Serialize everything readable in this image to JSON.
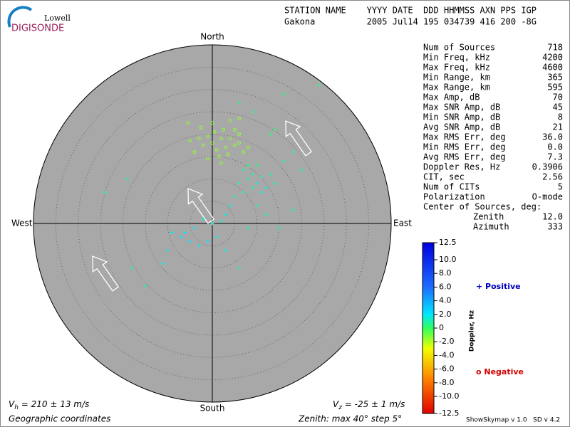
{
  "header": {
    "logo_top": "Lowell",
    "logo_bottom": "DIGISONDE",
    "line1": "STATION NAME    YYYY DATE  DDD HHMMSS AXN PPS IGP",
    "line2": "Gakona          2005 Jul14 195 034739 416 200 -8G"
  },
  "directions": {
    "north": "North",
    "south": "South",
    "west": "West",
    "east": "East"
  },
  "stats": [
    [
      "Num of Sources",
      "718"
    ],
    [
      "Min Freq, kHz",
      "4200"
    ],
    [
      "Max Freq, kHz",
      "4600"
    ],
    [
      "Min Range, km",
      "365"
    ],
    [
      "Max Range, km",
      "595"
    ],
    [
      "Max Amp, dB",
      "70"
    ],
    [
      "Max SNR Amp, dB",
      "45"
    ],
    [
      "Min SNR Amp, dB",
      "8"
    ],
    [
      "Avg SNR Amp, dB",
      "21"
    ],
    [
      "Max RMS Err, deg",
      "36.0"
    ],
    [
      "Min RMS Err, deg",
      "0.0"
    ],
    [
      "Avg RMS Err, deg",
      "7.3"
    ],
    [
      "Doppler Res, Hz",
      "0.3906"
    ],
    [
      "CIT, sec",
      "2.56"
    ],
    [
      "Num of CITs",
      "5"
    ],
    [
      "Polarization",
      "O-mode"
    ]
  ],
  "center": {
    "title": "Center of Sources, deg:",
    "zenith_label": "Zenith",
    "zenith": "12.0",
    "azimuth_label": "Azimuth",
    "azimuth": "333"
  },
  "colorbar": {
    "label": "Doppler, Hz",
    "lim": [
      -12.5,
      12.5
    ],
    "ticks": [
      12.5,
      {
        "value": 10,
        "label": "10.0"
      },
      {
        "value": 8,
        "label": "8.0"
      },
      {
        "value": 6,
        "label": "6.0"
      },
      {
        "value": 4,
        "label": "4.0"
      },
      {
        "value": 2,
        "label": "2.0"
      },
      0,
      {
        "value": -2,
        "label": "-2.0"
      },
      {
        "value": -4,
        "label": "-4.0"
      },
      {
        "value": -6,
        "label": "-6.0"
      },
      {
        "value": -8,
        "label": "-8.0"
      },
      {
        "value": -10,
        "label": "-10.0"
      },
      -12.5
    ],
    "positive": "+ Positive",
    "negative": "o Negative"
  },
  "sky": {
    "max_zenith": 40,
    "step": 5
  },
  "sources": [
    {
      "x": 0,
      "y": 18,
      "d": -1.5
    },
    {
      "x": 2,
      "y": 19,
      "d": -1.5
    },
    {
      "x": -2,
      "y": 17.5,
      "d": -1.5
    },
    {
      "x": 1,
      "y": 16.5,
      "d": -1.5
    },
    {
      "x": 3,
      "y": 17,
      "d": -1.5
    },
    {
      "x": -1,
      "y": 19.5,
      "d": -1.5
    },
    {
      "x": 4,
      "y": 19,
      "d": -1.5
    },
    {
      "x": 5,
      "y": 17.5,
      "d": -1.5
    },
    {
      "x": -3,
      "y": 19,
      "d": -1.5
    },
    {
      "x": 0.5,
      "y": 20.5,
      "d": -1.5
    },
    {
      "x": 2.5,
      "y": 21,
      "d": -1.5
    },
    {
      "x": 6,
      "y": 18,
      "d": -1.5
    },
    {
      "x": -4,
      "y": 16,
      "d": -1.5
    },
    {
      "x": 1.5,
      "y": 15,
      "d": -1.5
    },
    {
      "x": 3.5,
      "y": 15.5,
      "d": -1.5
    },
    {
      "x": 7,
      "y": 16,
      "d": -1.5
    },
    {
      "x": -1,
      "y": 14.5,
      "d": -1.5
    },
    {
      "x": 5,
      "y": 21,
      "d": -1.5
    },
    {
      "x": -2.5,
      "y": 21.5,
      "d": -1.5
    },
    {
      "x": 0,
      "y": 22.5,
      "d": -1.5
    },
    {
      "x": 6,
      "y": 20,
      "d": -1.5
    },
    {
      "x": 2,
      "y": 13.5,
      "d": -1.5
    },
    {
      "x": 8,
      "y": 17,
      "d": -1.5
    },
    {
      "x": -5,
      "y": 18.5,
      "d": -1.5
    },
    {
      "x": 4,
      "y": 23,
      "d": -1.5
    },
    {
      "x": 6,
      "y": 23.5,
      "d": -1.5
    },
    {
      "x": -5.5,
      "y": 22.5,
      "d": -1.5
    },
    {
      "x": 8,
      "y": 10,
      "d": 1
    },
    {
      "x": 9,
      "y": 11,
      "d": 1
    },
    {
      "x": 7,
      "y": 12,
      "d": 1
    },
    {
      "x": 10,
      "y": 9,
      "d": 1.5
    },
    {
      "x": 11,
      "y": 10.5,
      "d": 1
    },
    {
      "x": 6,
      "y": 9,
      "d": 1
    },
    {
      "x": 12,
      "y": 8,
      "d": 1.5
    },
    {
      "x": 9,
      "y": 8,
      "d": 1
    },
    {
      "x": 13,
      "y": 11,
      "d": 1
    },
    {
      "x": 8,
      "y": 13,
      "d": 0.5
    },
    {
      "x": 10,
      "y": 13,
      "d": 0.5
    },
    {
      "x": 11,
      "y": 7,
      "d": 1.5
    },
    {
      "x": 14,
      "y": 9,
      "d": 1
    },
    {
      "x": 7,
      "y": 7,
      "d": 1
    },
    {
      "x": 5,
      "y": 6,
      "d": 1
    },
    {
      "x": 4,
      "y": 4,
      "d": 1.5
    },
    {
      "x": 3,
      "y": 2,
      "d": 1.5
    },
    {
      "x": 2,
      "y": 0.5,
      "d": 1.5
    },
    {
      "x": 0,
      "y": 0,
      "d": 1.5
    },
    {
      "x": -2,
      "y": 1,
      "d": 1.5
    },
    {
      "x": -4,
      "y": -1,
      "d": 2
    },
    {
      "x": -6,
      "y": -2,
      "d": 2
    },
    {
      "x": -7,
      "y": -3,
      "d": 2
    },
    {
      "x": -5,
      "y": -4,
      "d": 2
    },
    {
      "x": -3,
      "y": -5,
      "d": 2
    },
    {
      "x": -1,
      "y": -4,
      "d": 2
    },
    {
      "x": 1,
      "y": -3,
      "d": 1.5
    },
    {
      "x": -9,
      "y": -2,
      "d": 2
    },
    {
      "x": -10,
      "y": -6,
      "d": 2
    },
    {
      "x": -15,
      "y": -14,
      "d": 1
    },
    {
      "x": -18,
      "y": -10,
      "d": 1
    },
    {
      "x": -11,
      "y": -9,
      "d": 1.5
    },
    {
      "x": 16,
      "y": 14,
      "d": 1
    },
    {
      "x": 18,
      "y": 16,
      "d": 0.5
    },
    {
      "x": 20,
      "y": 12,
      "d": 1
    },
    {
      "x": 24,
      "y": 31,
      "d": 0.5
    },
    {
      "x": 16,
      "y": 29,
      "d": 0.5
    },
    {
      "x": 15,
      "y": -1,
      "d": 1
    },
    {
      "x": 12,
      "y": 2,
      "d": 1
    },
    {
      "x": 10,
      "y": 4,
      "d": 1
    },
    {
      "x": -24,
      "y": 7,
      "d": 1
    },
    {
      "x": -19,
      "y": 10,
      "d": 1
    },
    {
      "x": 6,
      "y": 27,
      "d": 0.5
    },
    {
      "x": 9,
      "y": 25,
      "d": 0.5
    },
    {
      "x": 13,
      "y": 20,
      "d": 0.5
    },
    {
      "x": 14,
      "y": 21,
      "d": 0.5
    },
    {
      "x": 18,
      "y": 3,
      "d": 1
    },
    {
      "x": 6,
      "y": -10,
      "d": 1
    },
    {
      "x": 3,
      "y": -6,
      "d": 1.5
    },
    {
      "x": 8,
      "y": -1,
      "d": 1
    }
  ],
  "footer": {
    "vh_v": "V",
    "vh_sub": "h",
    "vh_text": " = 210 ± 13 m/s",
    "vz_v": "V",
    "vz_sub": "z",
    "vz_text": " = -25 ± 1 m/s",
    "coords": "Geographic coordinates",
    "zenith": "Zenith: max 40°  step 5°",
    "version": "ShowSkymap v 1.0   SD v 4.2"
  }
}
